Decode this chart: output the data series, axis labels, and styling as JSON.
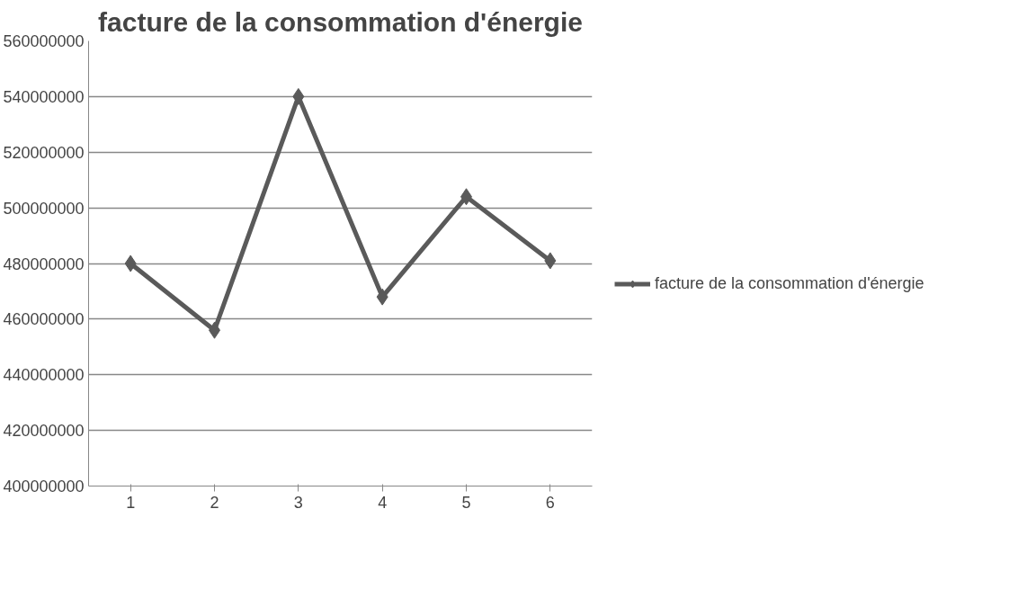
{
  "chart_data": {
    "type": "line",
    "title": "facture de la consommation d'énergie",
    "categories": [
      "1",
      "2",
      "3",
      "4",
      "5",
      "6"
    ],
    "series": [
      {
        "name": "facture de la consommation d'énergie",
        "color": "#5a5a5a",
        "values": [
          480000000,
          456000000,
          540000000,
          468000000,
          504000000,
          481000000
        ]
      }
    ],
    "ylim": [
      400000000,
      560000000
    ],
    "yticks": [
      400000000,
      420000000,
      440000000,
      460000000,
      480000000,
      500000000,
      520000000,
      540000000,
      560000000
    ],
    "grid": "y",
    "legend": "right",
    "marker": "diamond",
    "line_style": "solid"
  }
}
